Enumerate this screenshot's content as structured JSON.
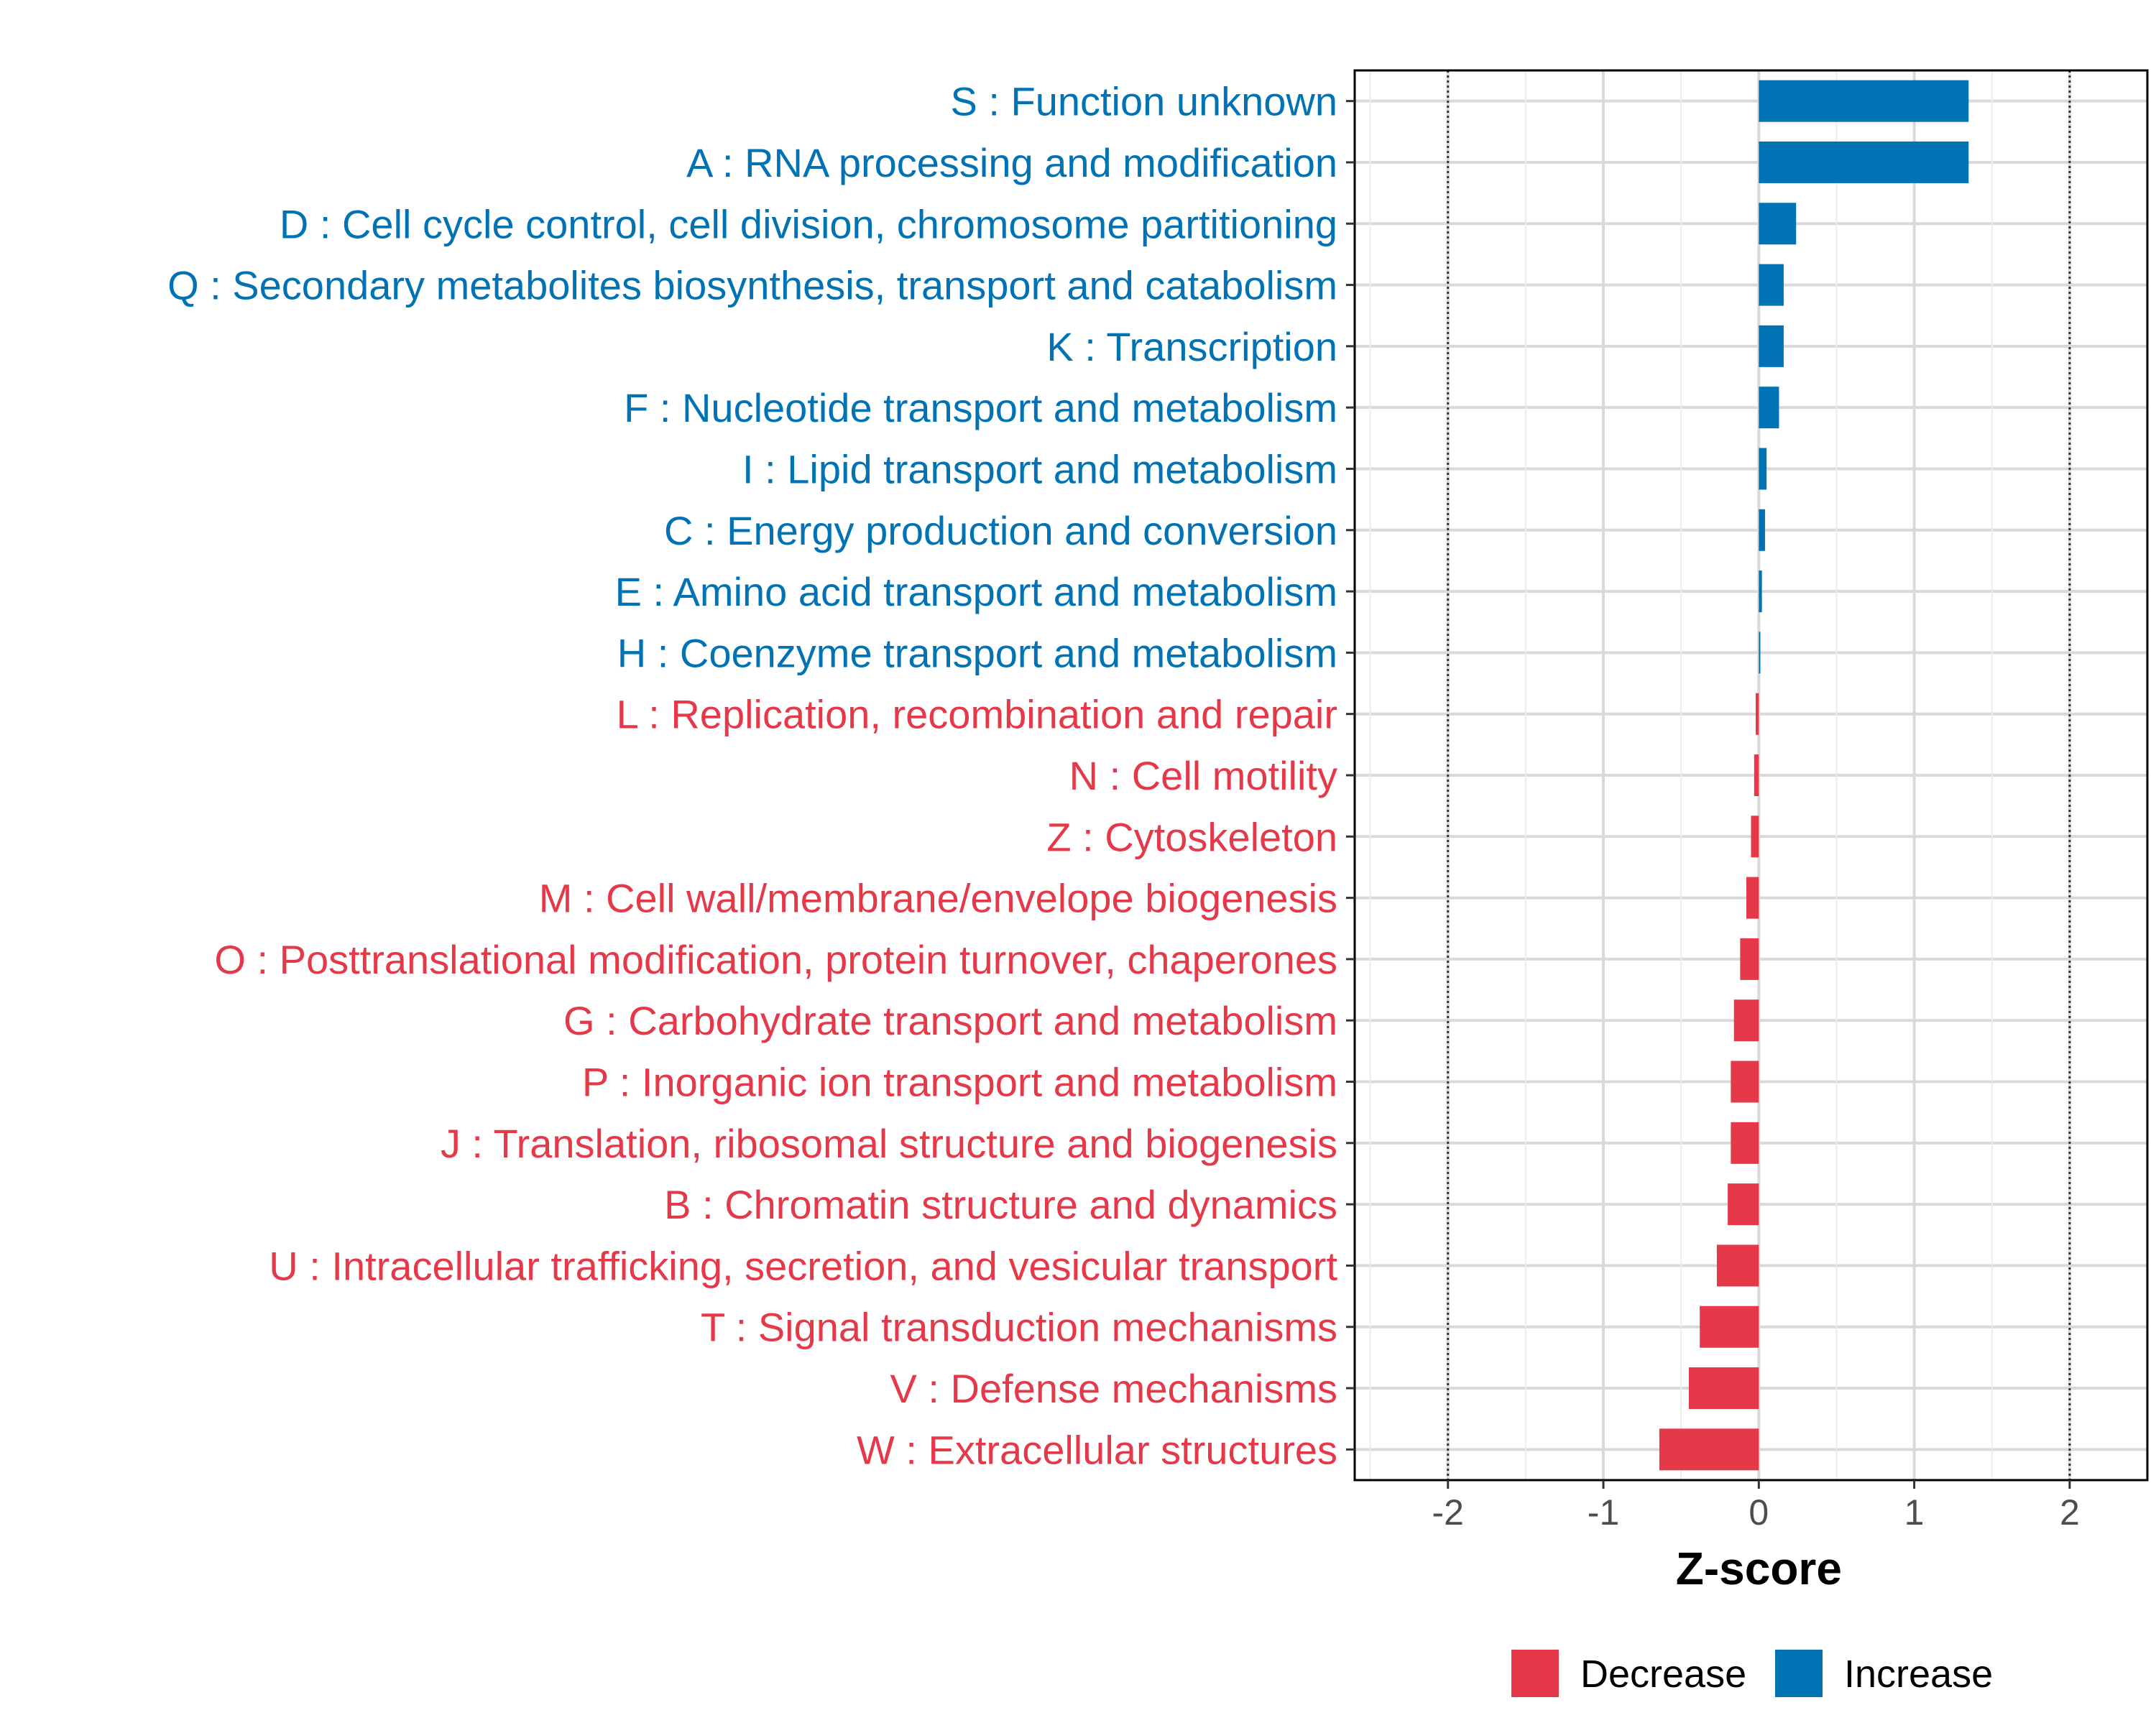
{
  "chart_data": {
    "type": "bar",
    "orientation": "horizontal",
    "xlabel": "Z-score",
    "ylabel": "",
    "xlim": [
      -2.6,
      2.5
    ],
    "xticks": [
      "-2",
      "-1",
      "0",
      "1",
      "2"
    ],
    "reference_lines": [
      -2,
      2
    ],
    "grid": true,
    "legend_position": "bottom",
    "colors": {
      "Increase": "#0173b5",
      "Decrease": "#e5394a"
    },
    "legend": [
      {
        "label": "Decrease",
        "color": "#e5394a"
      },
      {
        "label": "Increase",
        "color": "#0173b5"
      }
    ],
    "categories": [
      "S : Function unknown",
      "A : RNA processing and modification",
      "D : Cell cycle control, cell division, chromosome partitioning",
      "Q : Secondary metabolites biosynthesis, transport and catabolism",
      "K : Transcription",
      "F : Nucleotide transport and metabolism",
      "I : Lipid transport and metabolism",
      "C : Energy production and conversion",
      "E : Amino acid transport and metabolism",
      "H : Coenzyme transport and metabolism",
      "L : Replication, recombination and repair",
      "N : Cell motility",
      "Z : Cytoskeleton",
      "M : Cell wall/membrane/envelope biogenesis",
      "O : Posttranslational modification, protein turnover, chaperones",
      "G : Carbohydrate transport and metabolism",
      "P : Inorganic ion transport and metabolism",
      "J : Translation, ribosomal structure and biogenesis",
      "B : Chromatin structure and dynamics",
      "U : Intracellular trafficking, secretion, and vesicular transport",
      "T : Signal transduction mechanisms",
      "V : Defense mechanisms",
      "W : Extracellular structures"
    ],
    "values": [
      1.35,
      1.35,
      0.24,
      0.16,
      0.16,
      0.13,
      0.05,
      0.04,
      0.02,
      0.01,
      -0.02,
      -0.03,
      -0.05,
      -0.08,
      -0.12,
      -0.16,
      -0.18,
      -0.18,
      -0.2,
      -0.27,
      -0.38,
      -0.45,
      -0.64
    ],
    "direction": [
      "Increase",
      "Increase",
      "Increase",
      "Increase",
      "Increase",
      "Increase",
      "Increase",
      "Increase",
      "Increase",
      "Increase",
      "Decrease",
      "Decrease",
      "Decrease",
      "Decrease",
      "Decrease",
      "Decrease",
      "Decrease",
      "Decrease",
      "Decrease",
      "Decrease",
      "Decrease",
      "Decrease",
      "Decrease"
    ]
  }
}
